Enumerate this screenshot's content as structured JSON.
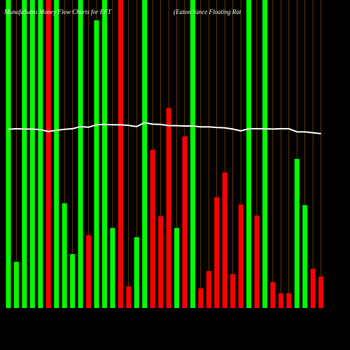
{
  "chart_data": {
    "type": "bar",
    "title": "MunafaSutra Money Flow Charts for EFT",
    "subtitle": "(Eaton Vance Floating Rat",
    "categories": [
      null,
      null,
      null,
      null,
      null,
      null,
      null,
      null,
      null,
      null,
      null,
      null,
      null,
      null,
      null,
      null,
      null,
      null,
      null,
      null,
      null,
      null,
      null,
      null,
      null,
      null,
      null,
      null,
      null,
      null,
      null,
      null,
      null,
      null,
      null,
      null,
      null,
      null,
      null,
      null
    ],
    "values": [
      100,
      15,
      100,
      100,
      100,
      100,
      100,
      34,
      17.5,
      100,
      23.6,
      93.4,
      100,
      26,
      100,
      7,
      23,
      100,
      51.4,
      29.8,
      65,
      26,
      55.7,
      100,
      6.4,
      12,
      36,
      44,
      11,
      33.6,
      100,
      30,
      100,
      8.4,
      4.8,
      4.8,
      48.4,
      33.4,
      12.7,
      10.2
    ],
    "colors": [
      "#00ff00",
      "#00ff00",
      "#00ff00",
      "#00ff00",
      "#00ff00",
      "#ff0000",
      "#00ff00",
      "#00ff00",
      "#00ff00",
      "#00ff00",
      "#ff0000",
      "#00ff00",
      "#00ff00",
      "#00ff00",
      "#ff0000",
      "#ff0000",
      "#00ff00",
      "#00ff00",
      "#ff0000",
      "#ff0000",
      "#ff0000",
      "#00ff00",
      "#ff0000",
      "#00ff00",
      "#ff0000",
      "#ff0000",
      "#ff0000",
      "#ff0000",
      "#ff0000",
      "#ff0000",
      "#00ff00",
      "#ff0000",
      "#00ff00",
      "#ff0000",
      "#ff0000",
      "#ff0000",
      "#00ff00",
      "#00ff00",
      "#ff0000",
      "#ff0000"
    ],
    "line": {
      "color": "#ffffff",
      "values": [
        58,
        58.2,
        58.1,
        58.1,
        57.9,
        57.3,
        57.7,
        58,
        58.2,
        58.9,
        58.7,
        59.5,
        59.6,
        59.5,
        59.5,
        59.3,
        58.9,
        60.2,
        59.7,
        59.6,
        59.2,
        59.2,
        59.1,
        59.1,
        58.8,
        58.8,
        58.6,
        58.5,
        58.1,
        57.5,
        58.2,
        58.2,
        58.2,
        58.1,
        58.2,
        58.2,
        57.2,
        57.2,
        56.9,
        56.6
      ]
    },
    "ylim": [
      0,
      100
    ]
  }
}
